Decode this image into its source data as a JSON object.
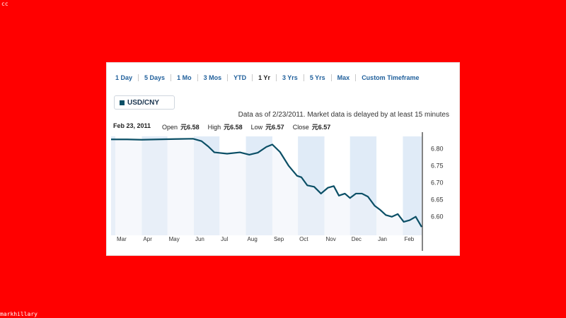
{
  "overlay": {
    "top_left": "cc",
    "bottom_left": "markhillary"
  },
  "toolbar": {
    "ranges": [
      "1 Day",
      "5 Days",
      "1 Mo",
      "3 Mos",
      "YTD",
      "1 Yr",
      "3 Yrs",
      "5 Yrs",
      "Max",
      "Custom Timeframe"
    ],
    "active": "1 Yr"
  },
  "symbol": {
    "label": "USD/CNY"
  },
  "note": "Data as of 2/23/2011. Market data is delayed by at least 15 minutes",
  "quote": {
    "date": "Feb 23, 2011",
    "open_label": "Open",
    "open_value": "元6.58",
    "high_label": "High",
    "high_value": "元6.58",
    "low_label": "Low",
    "low_value": "元6.57",
    "close_label": "Close",
    "close_value": "元6.57"
  },
  "colors": {
    "background": "#ff0000",
    "line": "#0b4f66",
    "area_fill": "#eef3f9",
    "band_fill": "#dde9f6",
    "link": "#1f5f9b"
  },
  "chart_data": {
    "type": "area",
    "title": "",
    "xlabel": "",
    "ylabel": "",
    "ylim": [
      6.56,
      6.84
    ],
    "yticks": [
      "6.80",
      "6.75",
      "6.70",
      "6.65",
      "6.60"
    ],
    "ytick_values": [
      6.8,
      6.75,
      6.7,
      6.65,
      6.6
    ],
    "y_axis_position": "right",
    "grid": false,
    "legend": "none",
    "x_labels": [
      "Mar",
      "Apr",
      "May",
      "Jun",
      "Jul",
      "Aug",
      "Sep",
      "Oct",
      "Nov",
      "Dec",
      "Jan",
      "Feb"
    ],
    "x": [
      "2010-02-24",
      "2010-03-15",
      "2010-04-01",
      "2010-04-20",
      "2010-05-10",
      "2010-05-31",
      "2010-06-10",
      "2010-06-18",
      "2010-06-25",
      "2010-07-10",
      "2010-07-25",
      "2010-08-05",
      "2010-08-15",
      "2010-08-25",
      "2010-09-01",
      "2010-09-10",
      "2010-09-20",
      "2010-09-30",
      "2010-10-05",
      "2010-10-12",
      "2010-10-20",
      "2010-10-28",
      "2010-11-05",
      "2010-11-12",
      "2010-11-18",
      "2010-11-25",
      "2010-12-01",
      "2010-12-08",
      "2010-12-15",
      "2010-12-22",
      "2010-12-30",
      "2011-01-05",
      "2011-01-12",
      "2011-01-19",
      "2011-01-26",
      "2011-02-02",
      "2011-02-09",
      "2011-02-16",
      "2011-02-23"
    ],
    "series": [
      {
        "values": [
          6.827,
          6.827,
          6.826,
          6.827,
          6.828,
          6.829,
          6.822,
          6.806,
          6.789,
          6.785,
          6.789,
          6.782,
          6.788,
          6.805,
          6.812,
          6.79,
          6.75,
          6.72,
          6.716,
          6.692,
          6.688,
          6.668,
          6.685,
          6.69,
          6.662,
          6.668,
          6.655,
          6.668,
          6.668,
          6.659,
          6.632,
          6.621,
          6.605,
          6.6,
          6.608,
          6.585,
          6.59,
          6.6,
          6.57
        ]
      }
    ]
  }
}
